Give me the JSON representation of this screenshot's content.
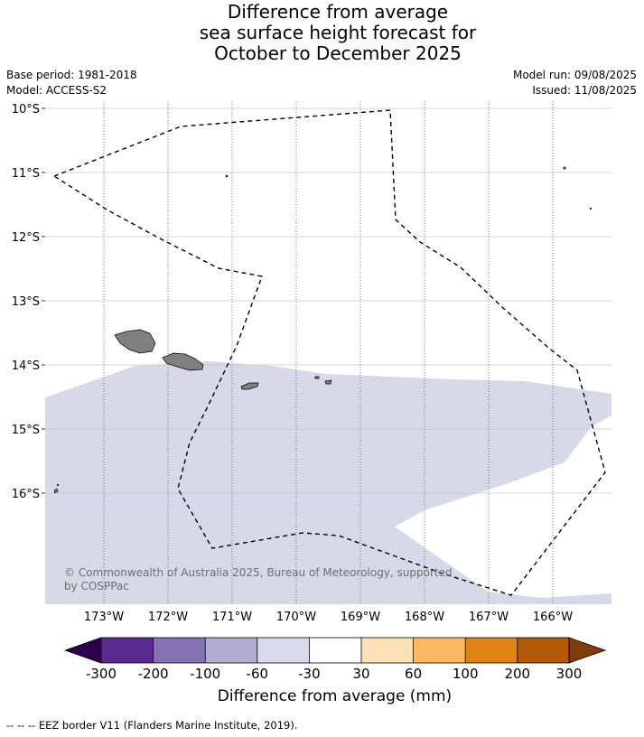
{
  "title": {
    "line1": "Difference from average",
    "line2": "sea surface height forecast for",
    "line3": "October to December 2025"
  },
  "meta": {
    "base_period": "Base period: 1981-2018",
    "model": "Model: ACCESS-S2",
    "model_run": "Model run: 09/08/2025",
    "issued": "Issued: 11/08/2025"
  },
  "map": {
    "lat_labels": [
      "10°S",
      "11°S",
      "12°S",
      "13°S",
      "14°S",
      "15°S",
      "16°S"
    ],
    "lon_labels": [
      "173°W",
      "172°W",
      "171°W",
      "170°W",
      "169°W",
      "168°W",
      "167°W",
      "166°W"
    ],
    "copyright_line1": "© Commonwealth of Australia 2025, Bureau of Meteorology, supported",
    "copyright_line2": "by COSPPac",
    "anomaly_color": "#d8d8e9",
    "land_color": "#808080"
  },
  "colorbar": {
    "tick_labels": [
      "-300",
      "-200",
      "-100",
      "-60",
      "-30",
      "30",
      "60",
      "100",
      "200",
      "300"
    ],
    "colors": [
      "#2d004b",
      "#5b2a90",
      "#8473b0",
      "#b2abd2",
      "#d8daeb",
      "#ffffff",
      "#fee0b6",
      "#fdb863",
      "#e08214",
      "#b35806",
      "#7f3b08"
    ],
    "label": "Difference from average (mm)"
  },
  "footer": {
    "eez_note": "--  --  -- EEZ border V11 (Flanders Marine Institute, 2019)."
  }
}
